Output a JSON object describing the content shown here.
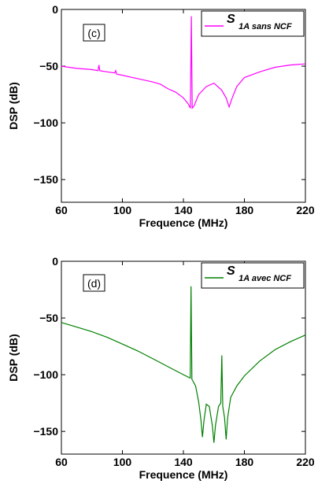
{
  "chart_data": [
    {
      "type": "line",
      "panel_label": "(c)",
      "xlabel": "Frequence (MHz)",
      "ylabel": "DSP (dB)",
      "xlim": [
        60,
        220
      ],
      "ylim": [
        -170,
        0
      ],
      "x_ticks": [
        60,
        100,
        140,
        180,
        220
      ],
      "y_ticks": [
        0,
        -50,
        -100,
        -150
      ],
      "grid": false,
      "legend_position": "top-right",
      "legend_symbol": "S",
      "legend_subscript": "1A sans NCF",
      "series": [
        {
          "name": "S 1A sans NCF",
          "color": "#ff00ff",
          "points": [
            [
              60,
              -50
            ],
            [
              70,
              -52
            ],
            [
              80,
              -53
            ],
            [
              84,
              -54
            ],
            [
              84.6,
              -49
            ],
            [
              85.2,
              -54
            ],
            [
              90,
              -55
            ],
            [
              95,
              -56
            ],
            [
              95.6,
              -54
            ],
            [
              96.2,
              -57
            ],
            [
              100,
              -58
            ],
            [
              110,
              -61
            ],
            [
              120,
              -64
            ],
            [
              125,
              -66
            ],
            [
              130,
              -70
            ],
            [
              135,
              -73
            ],
            [
              140,
              -78
            ],
            [
              143,
              -83
            ],
            [
              144.6,
              -87
            ],
            [
              145.2,
              -6
            ],
            [
              145.8,
              -87
            ],
            [
              147,
              -85
            ],
            [
              150,
              -75
            ],
            [
              155,
              -68
            ],
            [
              160,
              -65
            ],
            [
              165,
              -71
            ],
            [
              168,
              -78
            ],
            [
              170,
              -86
            ],
            [
              172,
              -78
            ],
            [
              175,
              -68
            ],
            [
              180,
              -60
            ],
            [
              190,
              -55
            ],
            [
              200,
              -51
            ],
            [
              210,
              -49
            ],
            [
              220,
              -48
            ]
          ]
        }
      ]
    },
    {
      "type": "line",
      "panel_label": "(d)",
      "xlabel": "Frequence (MHz)",
      "ylabel": "DSP (dB)",
      "xlim": [
        60,
        220
      ],
      "ylim": [
        -170,
        0
      ],
      "x_ticks": [
        60,
        100,
        140,
        180,
        220
      ],
      "y_ticks": [
        0,
        -50,
        -100,
        -150
      ],
      "grid": false,
      "legend_position": "top-right",
      "legend_symbol": "S",
      "legend_subscript": "1A avec NCF",
      "series": [
        {
          "name": "S 1A avec NCF",
          "color": "#008000",
          "points": [
            [
              60,
              -54
            ],
            [
              70,
              -58
            ],
            [
              80,
              -62
            ],
            [
              90,
              -67
            ],
            [
              100,
              -73
            ],
            [
              110,
              -79
            ],
            [
              120,
              -86
            ],
            [
              130,
              -93
            ],
            [
              140,
              -100
            ],
            [
              144.5,
              -103
            ],
            [
              145,
              -22
            ],
            [
              145.6,
              -104
            ],
            [
              148,
              -110
            ],
            [
              150,
              -124
            ],
            [
              151.5,
              -140
            ],
            [
              152.5,
              -155
            ],
            [
              153.5,
              -140
            ],
            [
              155,
              -126
            ],
            [
              157,
              -128
            ],
            [
              159,
              -145
            ],
            [
              160,
              -160
            ],
            [
              161,
              -145
            ],
            [
              163,
              -128
            ],
            [
              164.5,
              -125
            ],
            [
              165.2,
              -83
            ],
            [
              165.8,
              -128
            ],
            [
              167,
              -138
            ],
            [
              168,
              -157
            ],
            [
              169,
              -138
            ],
            [
              171,
              -120
            ],
            [
              175,
              -110
            ],
            [
              180,
              -101
            ],
            [
              190,
              -88
            ],
            [
              200,
              -78
            ],
            [
              210,
              -71
            ],
            [
              220,
              -65
            ]
          ]
        }
      ]
    }
  ]
}
